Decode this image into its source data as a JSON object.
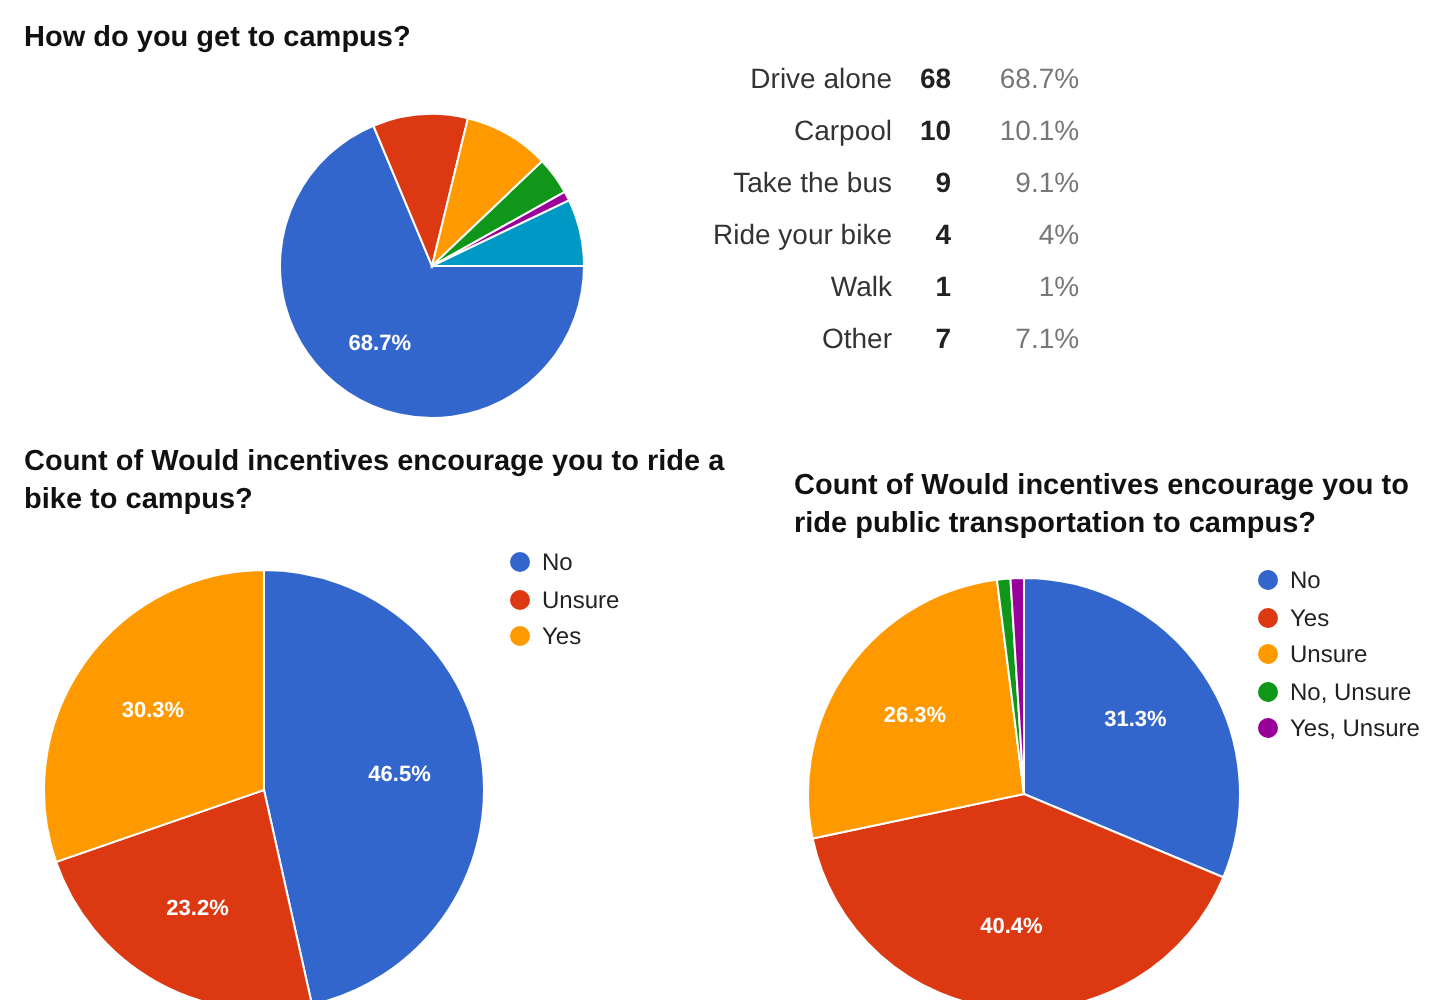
{
  "chart_data": [
    {
      "type": "pie",
      "title": "How do you get to campus?",
      "categories": [
        null,
        null,
        null,
        null,
        null,
        null
      ],
      "values": [
        68.7,
        10.1,
        9.1,
        4,
        1,
        7.1
      ],
      "colors": [
        "#3366cc",
        "#dc3912",
        "#ff9900",
        "#109618",
        "#990099",
        "#0099c6"
      ],
      "value_labels": [
        "68.7%",
        null,
        null,
        null,
        null,
        null
      ]
    },
    {
      "type": "other",
      "categories": [
        "Drive alone",
        "Carpool",
        "Take the bus",
        "Ride your bike",
        "Walk",
        "Other"
      ],
      "values": [
        68,
        10,
        9,
        4,
        1,
        7
      ],
      "data_labels": true,
      "annotations": [
        "68.7%",
        "10.1%",
        "9.1%",
        "4%",
        "1%",
        "7.1%"
      ]
    },
    {
      "type": "pie",
      "title": "Count of Would incentives encourage you to ride a bike to campus?",
      "categories": [
        "No",
        "Unsure",
        "Yes"
      ],
      "values": [
        46.5,
        23.2,
        30.3
      ],
      "colors": [
        "#3366cc",
        "#dc3912",
        "#ff9900"
      ],
      "value_labels": [
        "46.5%",
        "23.2%",
        "30.3%"
      ],
      "legend": "right"
    },
    {
      "type": "pie",
      "title": "Count of Would incentives encourage you to ride public transportation to campus?",
      "categories": [
        "No",
        "Yes",
        "Unsure",
        "No, Unsure",
        "Yes, Unsure"
      ],
      "values": [
        31.3,
        40.4,
        26.3,
        1.0,
        1.0
      ],
      "colors": [
        "#3366cc",
        "#dc3912",
        "#ff9900",
        "#109618",
        "#990099"
      ],
      "value_labels": [
        "31.3%",
        "40.4%",
        "26.3%",
        null,
        null
      ],
      "legend": "right"
    }
  ]
}
